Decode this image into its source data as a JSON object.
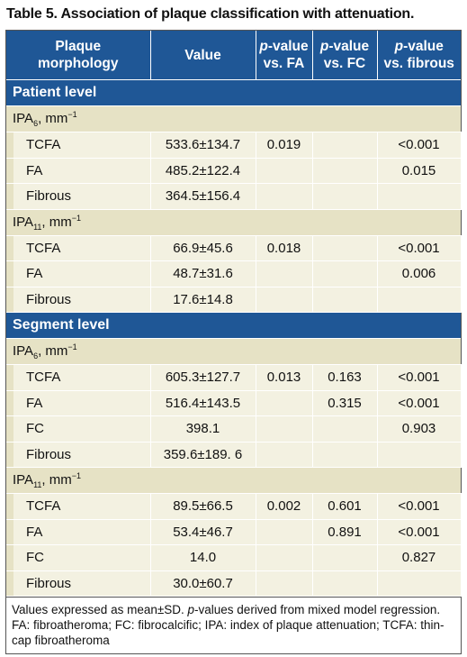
{
  "title": "Table 5. Association of plaque classification with attenuation.",
  "header": {
    "col0": [
      "Plaque",
      "morphology"
    ],
    "col1": "Value",
    "pcols": [
      {
        "em": "p",
        "text": "-value",
        "line2": "vs. FA"
      },
      {
        "em": "p",
        "text": "-value",
        "line2": "vs. FC"
      },
      {
        "em": "p",
        "text": "-value",
        "line2": "vs. fibrous"
      }
    ]
  },
  "sections": [
    {
      "label": "Patient level",
      "groups": [
        {
          "label": {
            "base": "IPA",
            "sub": "6",
            "unit": ", mm",
            "sup": "−1"
          },
          "rows": [
            [
              "TCFA",
              "533.6±134.7",
              "0.019",
              null,
              "<0.001"
            ],
            [
              "FA",
              "485.2±122.4",
              null,
              null,
              "0.015"
            ],
            [
              "Fibrous",
              "364.5±156.4",
              null,
              null,
              null
            ]
          ]
        },
        {
          "label": {
            "base": "IPA",
            "sub": "11",
            "unit": ", mm",
            "sup": "−1"
          },
          "rows": [
            [
              "TCFA",
              "66.9±45.6",
              "0.018",
              null,
              "<0.001"
            ],
            [
              "FA",
              "48.7±31.6",
              null,
              null,
              "0.006"
            ],
            [
              "Fibrous",
              "17.6±14.8",
              null,
              null,
              null
            ]
          ]
        }
      ]
    },
    {
      "label": "Segment level",
      "groups": [
        {
          "label": {
            "base": "IPA",
            "sub": "6",
            "unit": ", mm",
            "sup": "−1"
          },
          "rows": [
            [
              "TCFA",
              "605.3±127.7",
              "0.013",
              "0.163",
              "<0.001"
            ],
            [
              "FA",
              "516.4±143.5",
              null,
              "0.315",
              "<0.001"
            ],
            [
              "FC",
              "398.1",
              null,
              null,
              "0.903"
            ],
            [
              "Fibrous",
              "359.6±189. 6",
              null,
              null,
              null
            ]
          ]
        },
        {
          "label": {
            "base": "IPA",
            "sub": "11",
            "unit": ", mm",
            "sup": "−1"
          },
          "rows": [
            [
              "TCFA",
              "89.5±66.5",
              "0.002",
              "0.601",
              "<0.001"
            ],
            [
              "FA",
              "53.4±46.7",
              null,
              "0.891",
              "<0.001"
            ],
            [
              "FC",
              "14.0",
              null,
              null,
              "0.827"
            ],
            [
              "Fibrous",
              "30.0±60.7",
              null,
              null,
              null
            ]
          ]
        }
      ]
    }
  ],
  "footnote": [
    "Values expressed as mean±SD. ",
    "p",
    "-values derived from mixed model regression. FA: fibroatheroma; FC: fibrocalcific; IPA: index of plaque attenuation; TCFA: thin-cap fibroatheroma"
  ]
}
